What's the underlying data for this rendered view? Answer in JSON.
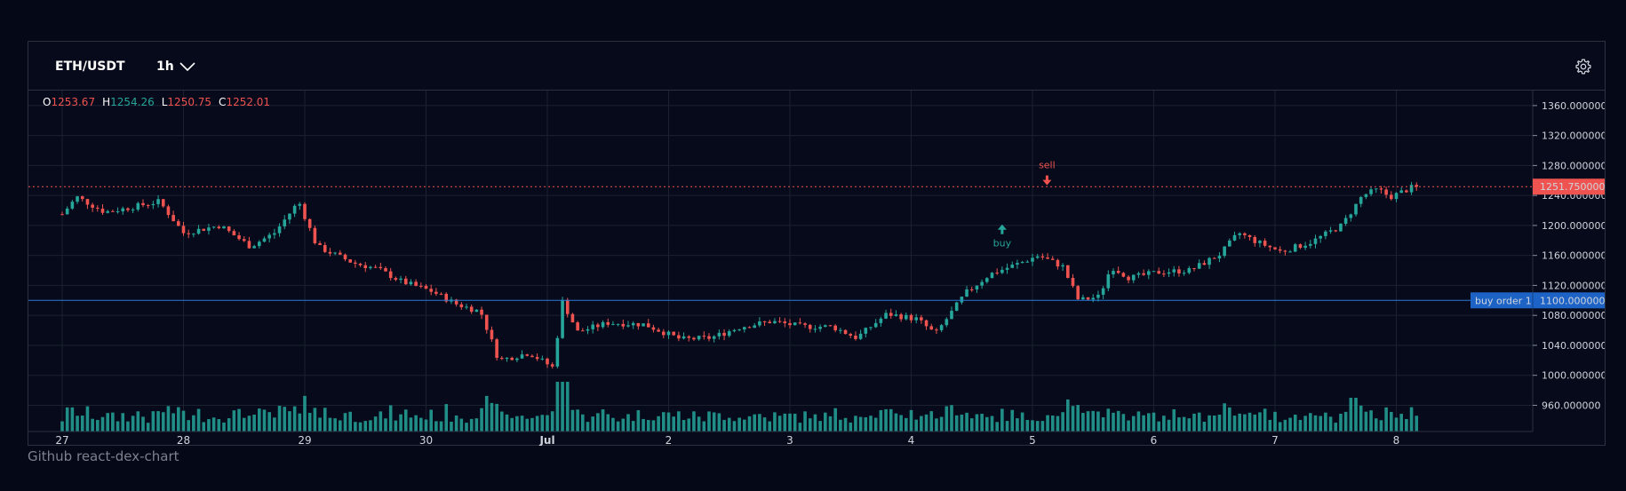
{
  "toolbar": {
    "symbol": "ETH/USDT",
    "interval": "1h",
    "settings_icon": "gear-icon"
  },
  "ohlc": {
    "o_label": "O",
    "o_value": "1253.67",
    "h_label": "H",
    "h_value": "1254.26",
    "l_label": "L",
    "l_value": "1250.75",
    "c_label": "C",
    "c_value": "1252.01"
  },
  "colors": {
    "up": "#26a69a",
    "down": "#ef5350",
    "background": "#060a1a",
    "grid": "#1c2130",
    "order_line": "#2a7bd6",
    "price_line": "#ef5350"
  },
  "footer": {
    "credit": "Github react-dex-chart"
  },
  "chart_data": {
    "type": "candlestick",
    "yaxis_ticks": [
      "960.000000",
      "1000.000000",
      "1040.000000",
      "1080.000000",
      "1120.000000",
      "1160.000000",
      "1200.000000",
      "1240.000000",
      "1280.000000",
      "1320.000000",
      "1360.000000"
    ],
    "ylim": [
      925,
      1380
    ],
    "xaxis_ticks": [
      "27",
      "28",
      "29",
      "30",
      "Jul",
      "2",
      "3",
      "4",
      "5",
      "6",
      "7",
      "8"
    ],
    "current_price_label": "1251.750000",
    "current_price": 1251.75,
    "orders": [
      {
        "label": "buy order 1",
        "price_label": "1100.000000",
        "price": 1100
      }
    ],
    "markers": [
      {
        "text": "buy",
        "side": "buy",
        "x_day": 7.75,
        "price": 1205
      },
      {
        "text": "sell",
        "side": "sell",
        "x_day": 8.12,
        "price": 1262
      }
    ],
    "anchors": [
      [
        0,
        1215
      ],
      [
        0.12,
        1238
      ],
      [
        0.35,
        1218
      ],
      [
        0.5,
        1222
      ],
      [
        0.8,
        1232
      ],
      [
        1.0,
        1190
      ],
      [
        1.3,
        1200
      ],
      [
        1.55,
        1172
      ],
      [
        1.75,
        1190
      ],
      [
        1.95,
        1232
      ],
      [
        2.1,
        1172
      ],
      [
        2.4,
        1150
      ],
      [
        2.6,
        1142
      ],
      [
        2.8,
        1125
      ],
      [
        3.05,
        1112
      ],
      [
        3.25,
        1095
      ],
      [
        3.45,
        1085
      ],
      [
        3.6,
        1020
      ],
      [
        3.85,
        1030
      ],
      [
        4.05,
        1010
      ],
      [
        4.12,
        1100
      ],
      [
        4.25,
        1058
      ],
      [
        4.5,
        1070
      ],
      [
        4.8,
        1068
      ],
      [
        5.1,
        1048
      ],
      [
        5.35,
        1050
      ],
      [
        5.6,
        1065
      ],
      [
        5.85,
        1072
      ],
      [
        6.1,
        1065
      ],
      [
        6.35,
        1065
      ],
      [
        6.55,
        1050
      ],
      [
        6.8,
        1082
      ],
      [
        7.05,
        1075
      ],
      [
        7.2,
        1055
      ],
      [
        7.45,
        1110
      ],
      [
        7.65,
        1135
      ],
      [
        7.9,
        1150
      ],
      [
        8.05,
        1160
      ],
      [
        8.25,
        1145
      ],
      [
        8.38,
        1100
      ],
      [
        8.55,
        1105
      ],
      [
        8.65,
        1145
      ],
      [
        8.8,
        1130
      ],
      [
        9.05,
        1138
      ],
      [
        9.3,
        1140
      ],
      [
        9.55,
        1162
      ],
      [
        9.7,
        1190
      ],
      [
        9.85,
        1178
      ],
      [
        10.05,
        1165
      ],
      [
        10.3,
        1178
      ],
      [
        10.55,
        1200
      ],
      [
        10.72,
        1240
      ],
      [
        10.85,
        1248
      ],
      [
        10.95,
        1238
      ],
      [
        11.15,
        1252
      ]
    ],
    "volume_note": "green volume bars at bottom"
  }
}
